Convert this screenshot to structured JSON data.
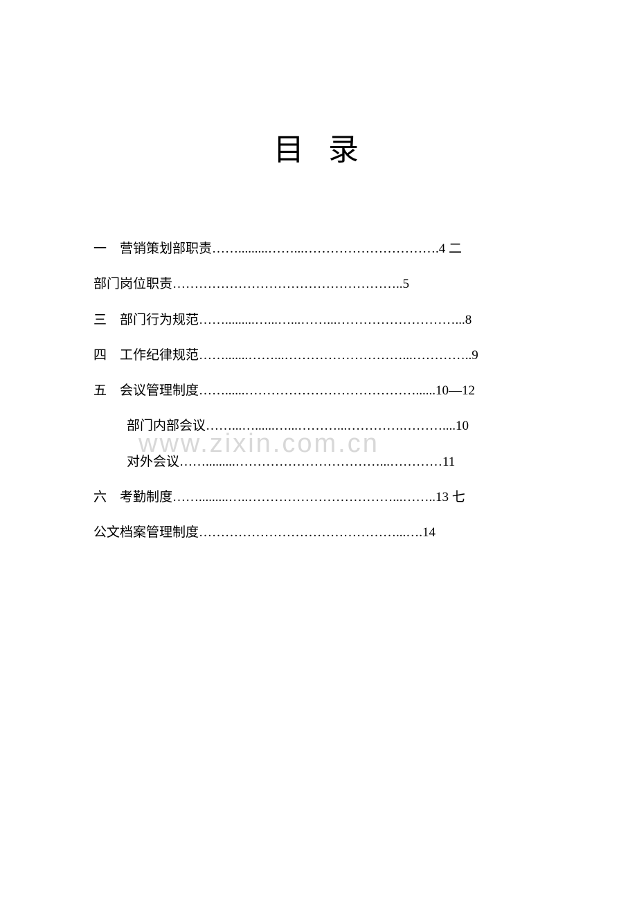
{
  "title": "目 录",
  "watermark": "www.zixin.com.cn",
  "toc": {
    "line1": "一　营销策划部职责…….........……...………………………….4 二",
    "line2": "部门岗位职责……………………………………………..5",
    "line3": "三　部门行为规范…….........…...…...……...………………………...8",
    "line4": "四　工作纪律规范…….......……...………………………...…………..9",
    "line5": "五　会议管理制度……......…………………………………......10—12",
    "line6": "部门内部会议……...…......…...………...………….………....10",
    "line7": "对外会议…….........……………………………...…………11",
    "line8": "六　考勤制度…….........…..……………………………...……..13 七",
    "line9": "公文档案管理制度………………………………………...….14"
  },
  "colors": {
    "background": "#ffffff",
    "text": "#000000",
    "watermark": "#d8d8d8"
  },
  "typography": {
    "title_fontsize": 44,
    "body_fontsize": 19,
    "watermark_fontsize": 38,
    "line_height": 2.7
  }
}
